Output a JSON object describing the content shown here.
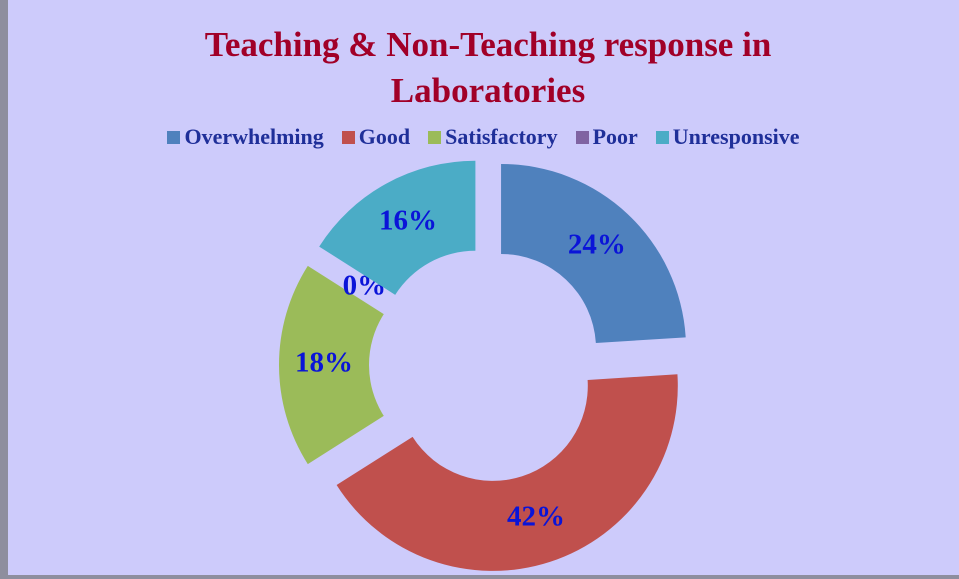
{
  "chart_data": {
    "type": "donut",
    "title": "Teaching & Non-Teaching response in Laboratories",
    "categories": [
      "Overwhelming",
      "Good",
      "Satisfactory",
      "Poor",
      "Unresponsive"
    ],
    "values": [
      24,
      42,
      18,
      0,
      16
    ],
    "value_labels": [
      "24%",
      "42%",
      "18%",
      "0%",
      "16%"
    ],
    "colors": [
      "#4f81bd",
      "#c0504d",
      "#9bbb59",
      "#8064a2",
      "#4bacc6"
    ],
    "legend": "top"
  }
}
